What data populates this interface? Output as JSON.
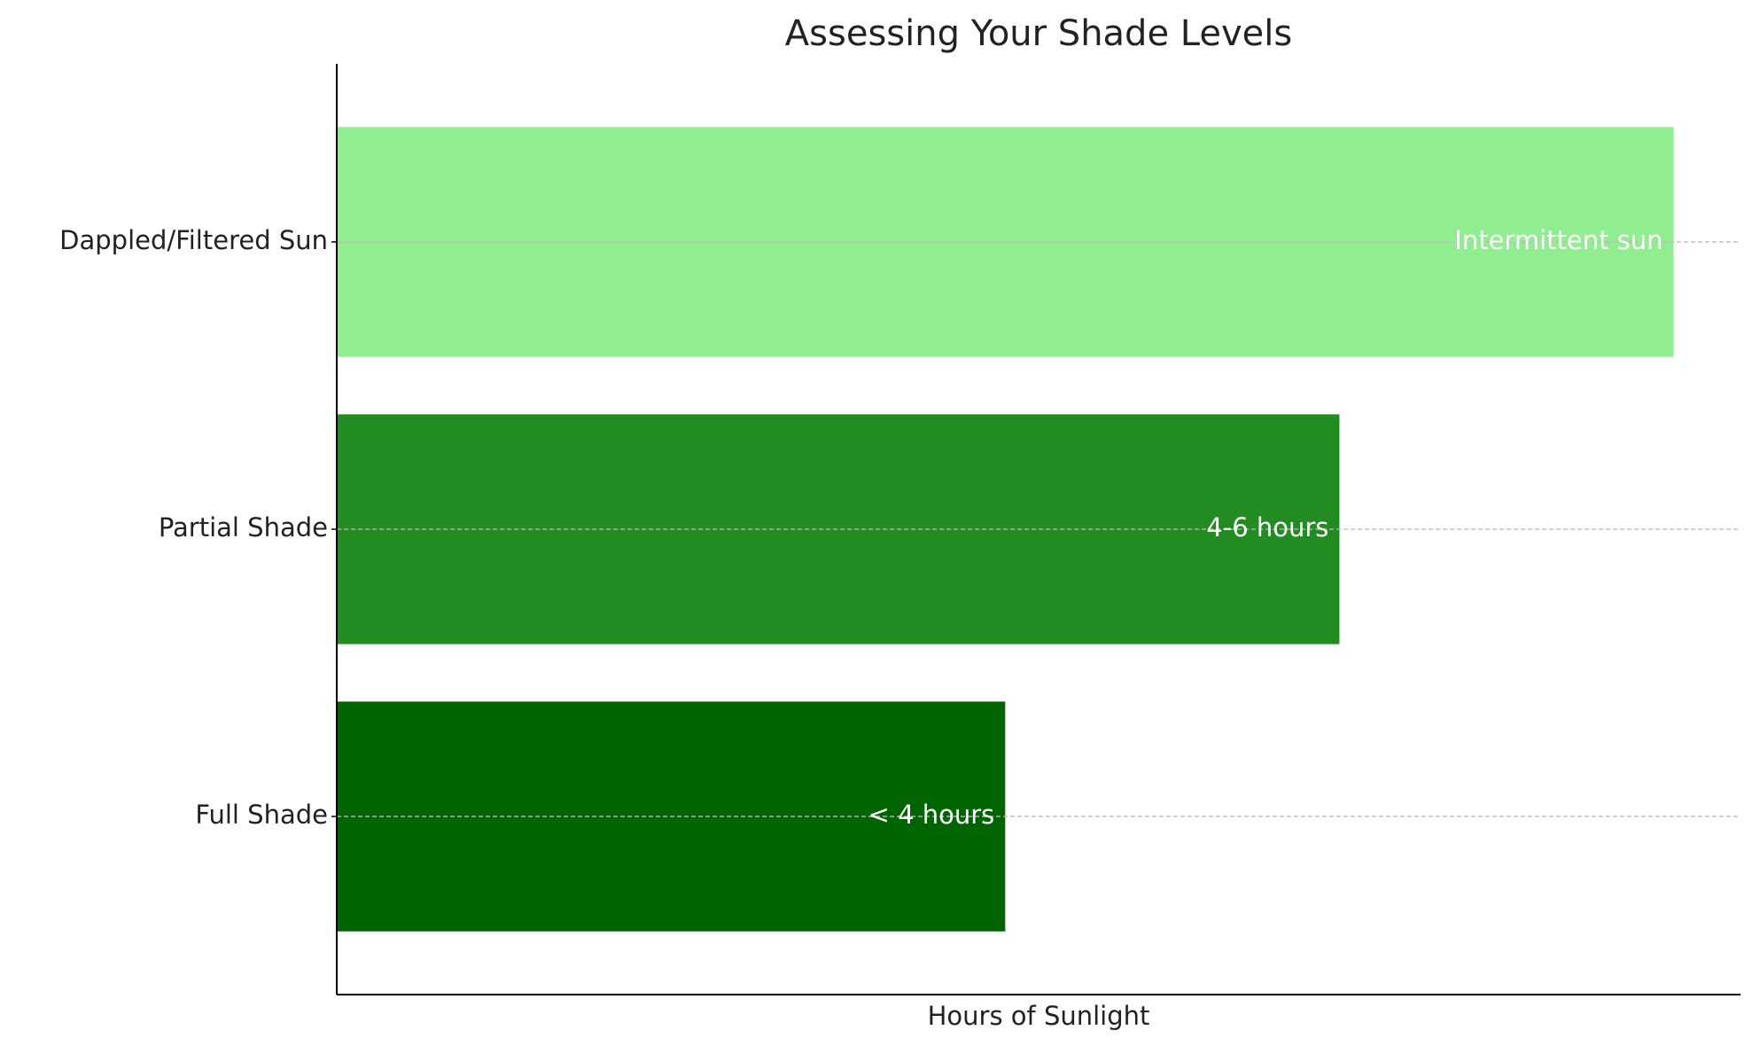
{
  "chart_data": {
    "type": "hbar",
    "title": "Assessing Your Shade Levels",
    "xlabel": "Hours of Sunlight",
    "categories": [
      "Full Shade",
      "Partial Shade",
      "Dappled/Filtered Sun"
    ],
    "values": [
      2,
      3,
      4
    ],
    "colors": [
      "#006400",
      "#228B22",
      "#90EE90"
    ],
    "bar_labels": [
      "< 4 hours",
      "4-6 hours",
      "Intermittent sun"
    ],
    "xlim": [
      0,
      4.2
    ],
    "grid": true
  }
}
